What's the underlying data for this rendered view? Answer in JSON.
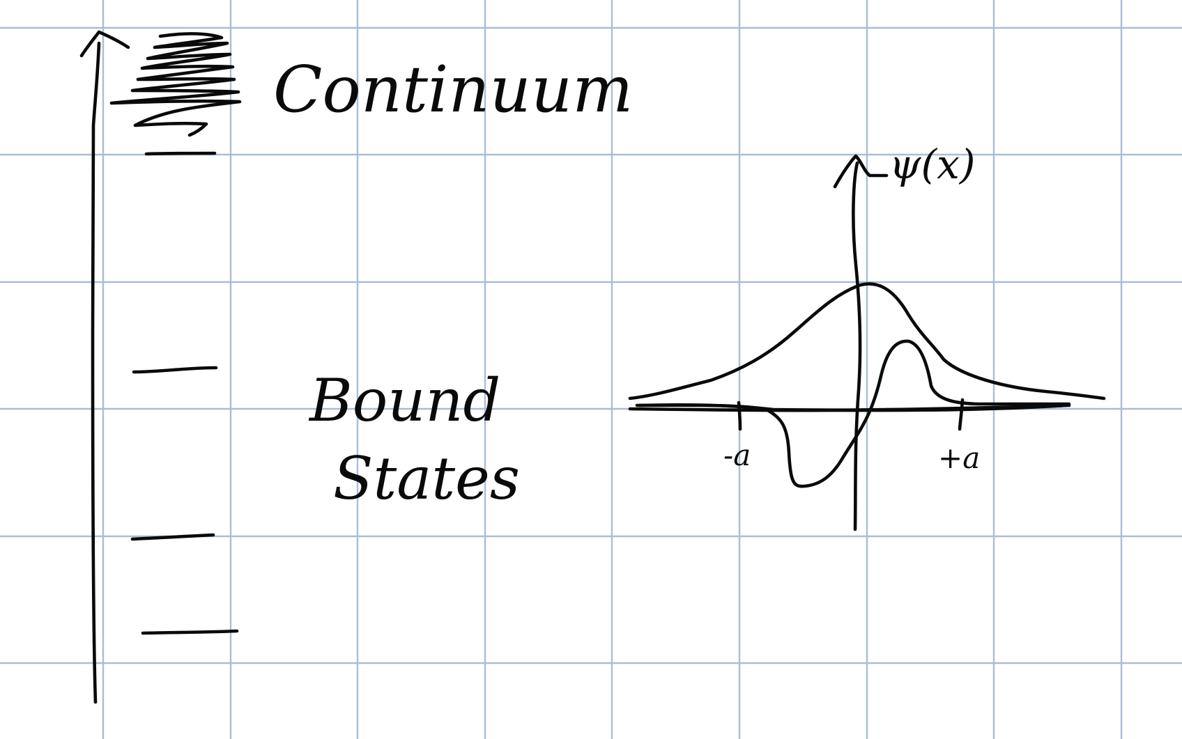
{
  "labels": {
    "continuum": "Continuum",
    "bound_line1": "Bound",
    "bound_line2": "States",
    "psi": "ψ(x)",
    "tick_minus_a": "-a",
    "tick_plus_a": "+a"
  },
  "diagram": {
    "energy_levels": {
      "bound_state_count": 3,
      "continuum": true
    },
    "wavefunction_plot": {
      "curves": [
        "ground state (even, single peak)",
        "first excited state (odd, node near origin)"
      ],
      "axis_marks": [
        "-a",
        "+a"
      ]
    }
  },
  "colors": {
    "grid": "#a9bdd6",
    "ink": "#0a0a0a",
    "paper": "#ffffff"
  }
}
